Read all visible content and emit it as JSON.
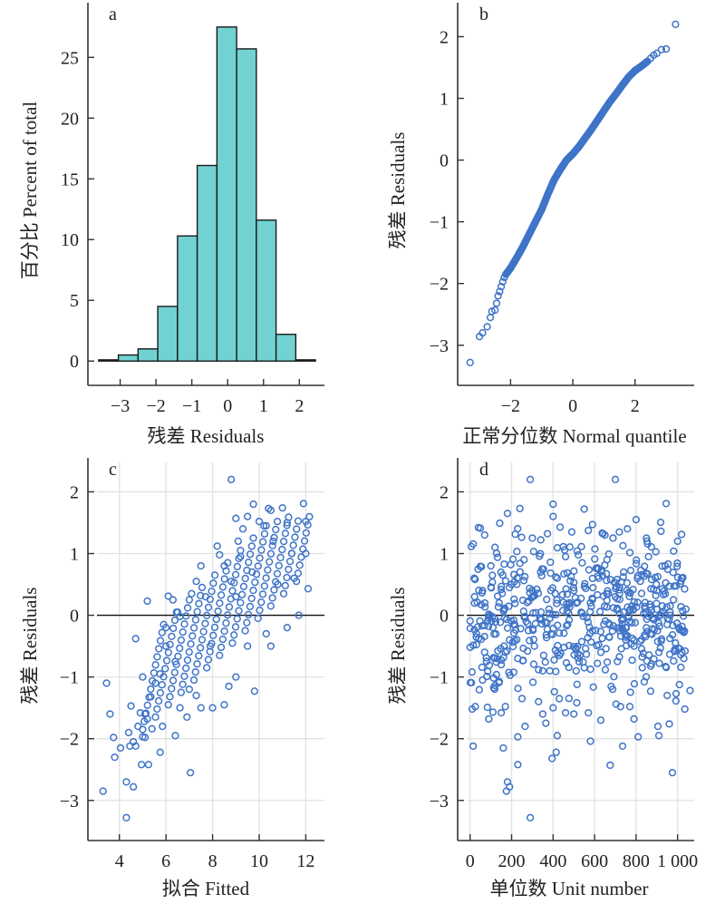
{
  "colors": {
    "bar_fill": "#72d2d2",
    "bar_stroke": "#1a1a1a",
    "point": "#3f74c8",
    "axis": "#333333",
    "grid": "#e2e2e2",
    "zero_line": "#111111"
  },
  "chart_data": [
    {
      "panel": "a",
      "type": "bar",
      "title": "a",
      "xlabel": "残差 Residuals",
      "ylabel": "百分比 Percent of total",
      "xlim": [
        -3.9,
        2.7
      ],
      "ylim": [
        -2,
        29.5
      ],
      "xticks": [
        -3,
        -2,
        -1,
        0,
        1,
        2
      ],
      "xtick_labels": [
        "−3",
        "−2",
        "−1",
        "0",
        "1",
        "2"
      ],
      "yticks": [
        0,
        5,
        10,
        15,
        20,
        25
      ],
      "ytick_labels": [
        "0",
        "5",
        "10",
        "15",
        "20",
        "25"
      ],
      "grid": false,
      "bins": [
        {
          "x0": -3.6,
          "x1": -3.05,
          "value": 0.1
        },
        {
          "x0": -3.05,
          "x1": -2.5,
          "value": 0.5
        },
        {
          "x0": -2.5,
          "x1": -1.95,
          "value": 1.0
        },
        {
          "x0": -1.95,
          "x1": -1.4,
          "value": 4.5
        },
        {
          "x0": -1.4,
          "x1": -0.85,
          "value": 10.3
        },
        {
          "x0": -0.85,
          "x1": -0.3,
          "value": 16.1
        },
        {
          "x0": -0.3,
          "x1": 0.25,
          "value": 27.5
        },
        {
          "x0": 0.25,
          "x1": 0.8,
          "value": 25.7
        },
        {
          "x0": 0.8,
          "x1": 1.35,
          "value": 11.6
        },
        {
          "x0": 1.35,
          "x1": 1.9,
          "value": 2.2
        },
        {
          "x0": 1.9,
          "x1": 2.45,
          "value": 0.1
        }
      ]
    },
    {
      "panel": "b",
      "type": "scatter",
      "title": "b",
      "xlabel": "正常分位数 Normal quantile",
      "ylabel": "残差 Residuals",
      "xlim": [
        -3.7,
        3.9
      ],
      "ylim": [
        -3.65,
        2.55
      ],
      "xticks": [
        -2,
        0,
        2
      ],
      "xtick_labels": [
        "−2",
        "0",
        "2"
      ],
      "yticks": [
        -3,
        -2,
        -1,
        0,
        1,
        2
      ],
      "ytick_labels": [
        "−3",
        "−2",
        "−1",
        "0",
        "1",
        "2"
      ],
      "grid": false,
      "description": "Normal Q-Q plot of ~1000 residuals; near-linear with slight curvature",
      "points": [
        [
          -3.3,
          -3.28
        ],
        [
          -3.0,
          -2.86
        ],
        [
          -2.9,
          -2.8
        ],
        [
          -2.75,
          -2.7
        ],
        [
          -2.65,
          -2.55
        ],
        [
          -2.6,
          -2.45
        ],
        [
          -2.5,
          -2.43
        ],
        [
          -2.45,
          -2.32
        ],
        [
          -2.4,
          -2.2
        ],
        [
          -2.35,
          -2.13
        ],
        [
          -2.3,
          -2.05
        ],
        [
          -2.25,
          -1.97
        ],
        [
          -2.2,
          -1.9
        ],
        [
          -2.15,
          -1.85
        ],
        [
          -2.0,
          -1.75
        ],
        [
          -1.8,
          -1.58
        ],
        [
          -1.6,
          -1.4
        ],
        [
          -1.4,
          -1.2
        ],
        [
          -1.2,
          -1.0
        ],
        [
          -1.0,
          -0.8
        ],
        [
          -0.8,
          -0.55
        ],
        [
          -0.6,
          -0.32
        ],
        [
          -0.4,
          -0.15
        ],
        [
          -0.2,
          0.0
        ],
        [
          0.0,
          0.1
        ],
        [
          0.2,
          0.22
        ],
        [
          0.4,
          0.36
        ],
        [
          0.6,
          0.5
        ],
        [
          0.8,
          0.65
        ],
        [
          1.0,
          0.8
        ],
        [
          1.2,
          0.95
        ],
        [
          1.4,
          1.08
        ],
        [
          1.6,
          1.22
        ],
        [
          1.8,
          1.35
        ],
        [
          2.0,
          1.45
        ],
        [
          2.2,
          1.52
        ],
        [
          2.4,
          1.6
        ],
        [
          2.5,
          1.65
        ],
        [
          2.6,
          1.7
        ],
        [
          2.7,
          1.73
        ],
        [
          2.85,
          1.79
        ],
        [
          3.0,
          1.8
        ],
        [
          3.3,
          2.2
        ]
      ]
    },
    {
      "panel": "c",
      "type": "scatter",
      "title": "c",
      "xlabel": "拟合 Fitted",
      "ylabel": "残差 Residuals",
      "xlim": [
        2.65,
        12.8
      ],
      "ylim": [
        -3.65,
        2.55
      ],
      "xticks": [
        4,
        6,
        8,
        10,
        12
      ],
      "xtick_labels": [
        "4",
        "6",
        "8",
        "10",
        "12"
      ],
      "yticks": [
        -3,
        -2,
        -1,
        0,
        1,
        2
      ],
      "ytick_labels": [
        "−3",
        "−2",
        "−1",
        "0",
        "1",
        "2"
      ],
      "grid": true,
      "reference_line_y": 0,
      "description": "Residuals vs fitted values; diagonal striped bands rising with fitted value",
      "points": [
        [
          3.3,
          -2.85
        ],
        [
          3.45,
          -1.1
        ],
        [
          3.6,
          -1.6
        ],
        [
          3.75,
          -1.98
        ],
        [
          3.8,
          -2.3
        ],
        [
          4.05,
          -2.15
        ],
        [
          4.3,
          -2.7
        ],
        [
          4.3,
          -3.28
        ],
        [
          4.4,
          -1.9
        ],
        [
          4.45,
          -2.12
        ],
        [
          4.5,
          -1.47
        ],
        [
          4.6,
          -2.05
        ],
        [
          4.6,
          -2.78
        ],
        [
          4.7,
          -2.12
        ],
        [
          4.8,
          -1.8
        ],
        [
          4.9,
          -1.58
        ],
        [
          4.95,
          -2.42
        ],
        [
          5.0,
          -1.97
        ],
        [
          5.1,
          -1.98
        ],
        [
          5.25,
          -2.42
        ],
        [
          5.4,
          -1.84
        ],
        [
          5.75,
          -2.22
        ],
        [
          6.4,
          -1.95
        ],
        [
          7.05,
          -2.55
        ],
        [
          5.0,
          -1.0
        ],
        [
          5.1,
          -1.6
        ],
        [
          5.2,
          -1.68
        ],
        [
          5.35,
          -1.32
        ],
        [
          5.55,
          -1.1
        ],
        [
          5.75,
          -0.95
        ],
        [
          5.85,
          -1.8
        ],
        [
          5.2,
          0.23
        ],
        [
          6.1,
          0.31
        ],
        [
          4.7,
          -0.38
        ],
        [
          6.3,
          0.25
        ],
        [
          6.5,
          0.05
        ],
        [
          6.6,
          -0.02
        ],
        [
          6.0,
          -0.2
        ],
        [
          6.0,
          -0.5
        ],
        [
          6.4,
          -0.75
        ],
        [
          6.6,
          -1.5
        ],
        [
          6.9,
          -1.65
        ],
        [
          7.0,
          -1.2
        ],
        [
          7.3,
          -1.3
        ],
        [
          7.5,
          -1.5
        ],
        [
          7.1,
          0.35
        ],
        [
          7.3,
          0.55
        ],
        [
          7.5,
          0.8
        ],
        [
          7.7,
          0.3
        ],
        [
          7.9,
          -0.5
        ],
        [
          8.0,
          -1.5
        ],
        [
          8.2,
          1.12
        ],
        [
          8.3,
          0.98
        ],
        [
          8.5,
          0.8
        ],
        [
          8.5,
          -1.45
        ],
        [
          8.7,
          -1.15
        ],
        [
          8.8,
          0.55
        ],
        [
          9.0,
          -1.0
        ],
        [
          9.0,
          0.3
        ],
        [
          9.2,
          0.95
        ],
        [
          8.8,
          2.2
        ],
        [
          9.0,
          1.57
        ],
        [
          9.1,
          1.2
        ],
        [
          9.3,
          1.4
        ],
        [
          9.5,
          1.6
        ],
        [
          9.5,
          -0.5
        ],
        [
          9.7,
          0.7
        ],
        [
          9.8,
          -1.23
        ],
        [
          9.75,
          1.8
        ],
        [
          10.0,
          1.52
        ],
        [
          10.2,
          1.45
        ],
        [
          10.4,
          1.73
        ],
        [
          10.5,
          1.7
        ],
        [
          10.6,
          1.2
        ],
        [
          10.8,
          0.5
        ],
        [
          11.0,
          1.74
        ],
        [
          11.2,
          1.5
        ],
        [
          11.4,
          1.0
        ],
        [
          11.5,
          0.6
        ],
        [
          11.9,
          1.81
        ],
        [
          12.0,
          1.52
        ],
        [
          12.0,
          1.0
        ],
        [
          12.1,
          0.43
        ],
        [
          11.7,
          0.0
        ],
        [
          11.2,
          -0.2
        ],
        [
          10.5,
          -0.5
        ],
        [
          10.3,
          -0.3
        ]
      ]
    },
    {
      "panel": "d",
      "type": "scatter",
      "title": "d",
      "xlabel": "单位数 Unit number",
      "ylabel": "残差 Residuals",
      "xlim": [
        -60,
        1080
      ],
      "ylim": [
        -3.65,
        2.55
      ],
      "xticks": [
        0,
        200,
        400,
        600,
        800,
        1000
      ],
      "xtick_labels": [
        "0",
        "200",
        "400",
        "600",
        "800",
        "1 000"
      ],
      "yticks": [
        -3,
        -2,
        -1,
        0,
        1,
        2
      ],
      "ytick_labels": [
        "−3",
        "−2",
        "−1",
        "0",
        "1",
        "2"
      ],
      "grid": true,
      "reference_line_y": 0,
      "description": "Residuals vs unit index (~1000 units); random scatter around zero",
      "points": [
        [
          15,
          -2.12
        ],
        [
          160,
          -2.15
        ],
        [
          175,
          -2.85
        ],
        [
          180,
          -2.7
        ],
        [
          190,
          -2.78
        ],
        [
          230,
          -2.42
        ],
        [
          230,
          -1.97
        ],
        [
          265,
          -1.8
        ],
        [
          290,
          -3.28
        ],
        [
          395,
          -2.32
        ],
        [
          415,
          -2.22
        ],
        [
          420,
          -1.95
        ],
        [
          580,
          -2.04
        ],
        [
          675,
          -2.43
        ],
        [
          735,
          -2.12
        ],
        [
          810,
          -1.97
        ],
        [
          910,
          -1.95
        ],
        [
          975,
          -2.55
        ],
        [
          960,
          -1.76
        ],
        [
          905,
          -1.8
        ],
        [
          10,
          -1.52
        ],
        [
          25,
          -1.48
        ],
        [
          60,
          -1.05
        ],
        [
          90,
          -1.68
        ],
        [
          110,
          -1.57
        ],
        [
          150,
          -1.58
        ],
        [
          170,
          -1.48
        ],
        [
          250,
          -1.35
        ],
        [
          330,
          -1.4
        ],
        [
          350,
          -1.6
        ],
        [
          365,
          -1.75
        ],
        [
          400,
          -1.5
        ],
        [
          460,
          -1.58
        ],
        [
          500,
          -1.6
        ],
        [
          570,
          -1.58
        ],
        [
          630,
          -1.7
        ],
        [
          725,
          -1.48
        ],
        [
          770,
          -1.48
        ],
        [
          790,
          -1.68
        ],
        [
          870,
          -1.23
        ],
        [
          950,
          -1.3
        ],
        [
          1035,
          -1.52
        ],
        [
          1060,
          -1.22
        ],
        [
          290,
          2.2
        ],
        [
          700,
          2.2
        ],
        [
          40,
          1.42
        ],
        [
          180,
          1.65
        ],
        [
          240,
          1.73
        ],
        [
          400,
          1.8
        ],
        [
          400,
          1.6
        ],
        [
          550,
          1.72
        ],
        [
          590,
          1.47
        ],
        [
          800,
          1.55
        ],
        [
          945,
          1.81
        ],
        [
          1000,
          1.2
        ],
        [
          70,
          1.3
        ],
        [
          120,
          1.1
        ],
        [
          300,
          1.25
        ],
        [
          490,
          1.35
        ],
        [
          650,
          1.3
        ],
        [
          850,
          1.25
        ],
        [
          20,
          0.6
        ],
        [
          60,
          0.4
        ],
        [
          100,
          0.8
        ],
        [
          140,
          0.2
        ],
        [
          200,
          0.5
        ],
        [
          260,
          0.9
        ],
        [
          300,
          0.3
        ],
        [
          340,
          0.7
        ],
        [
          380,
          0.1
        ],
        [
          420,
          0.6
        ],
        [
          460,
          0.95
        ],
        [
          500,
          0.4
        ],
        [
          540,
          0.85
        ],
        [
          580,
          0.2
        ],
        [
          620,
          0.6
        ],
        [
          660,
          0.9
        ],
        [
          700,
          0.3
        ],
        [
          740,
          0.7
        ],
        [
          780,
          0.15
        ],
        [
          820,
          0.55
        ],
        [
          860,
          0.95
        ],
        [
          900,
          0.4
        ],
        [
          940,
          0.8
        ],
        [
          980,
          0.25
        ],
        [
          1020,
          0.6
        ],
        [
          1040,
          0.1
        ],
        [
          30,
          -0.3
        ],
        [
          70,
          -0.6
        ],
        [
          110,
          -0.2
        ],
        [
          150,
          -0.8
        ],
        [
          190,
          -0.4
        ],
        [
          230,
          -0.7
        ],
        [
          270,
          -0.1
        ],
        [
          310,
          -0.5
        ],
        [
          350,
          -0.9
        ],
        [
          390,
          -0.3
        ],
        [
          430,
          -0.65
        ],
        [
          470,
          -0.15
        ],
        [
          510,
          -0.55
        ],
        [
          550,
          -0.85
        ],
        [
          590,
          -0.25
        ],
        [
          630,
          -0.6
        ],
        [
          670,
          -0.35
        ],
        [
          710,
          -0.75
        ],
        [
          750,
          -0.2
        ],
        [
          790,
          -0.5
        ],
        [
          830,
          -0.85
        ],
        [
          870,
          -0.3
        ],
        [
          910,
          -0.6
        ],
        [
          950,
          -0.15
        ],
        [
          990,
          -0.45
        ],
        [
          1030,
          -0.7
        ]
      ]
    }
  ]
}
